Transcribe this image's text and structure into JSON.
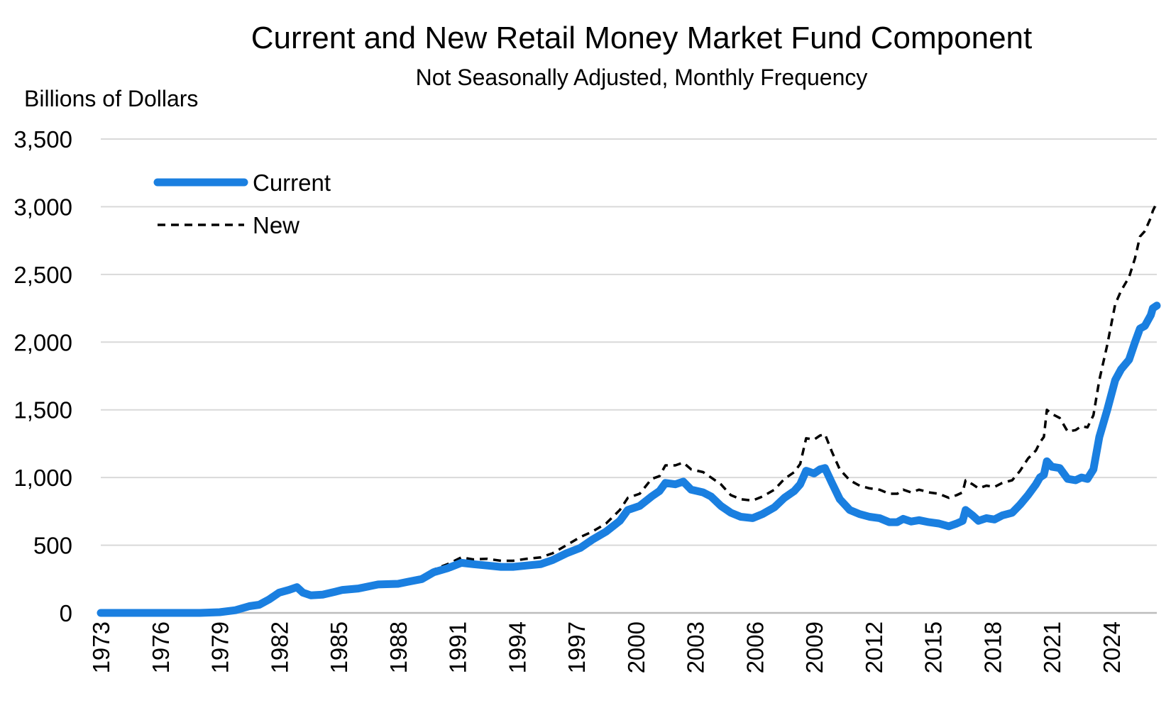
{
  "chart_data": {
    "type": "line",
    "title": "Current and New Retail Money Market Fund Component",
    "subtitle": "Not Seasonally Adjusted, Monthly Frequency",
    "ylabel": "Billions of Dollars",
    "xlabel": "",
    "ylim": [
      0,
      3500
    ],
    "xlim": [
      1973,
      2026.3
    ],
    "y_ticks": [
      "0",
      "500",
      "1,000",
      "1,500",
      "2,000",
      "2,500",
      "3,000",
      "3,500"
    ],
    "y_tick_values": [
      0,
      500,
      1000,
      1500,
      2000,
      2500,
      3000,
      3500
    ],
    "x_ticks": [
      "1973",
      "1976",
      "1979",
      "1982",
      "1985",
      "1988",
      "1991",
      "1994",
      "1997",
      "2000",
      "2003",
      "2006",
      "2009",
      "2012",
      "2015",
      "2018",
      "2021",
      "2024"
    ],
    "x_tick_values": [
      1973,
      1976,
      1979,
      1982,
      1985,
      1988,
      1991,
      1994,
      1997,
      2000,
      2003,
      2006,
      2009,
      2012,
      2015,
      2018,
      2021,
      2024
    ],
    "grid": true,
    "legend_position": "top-left",
    "series": [
      {
        "name": "Current",
        "color": "#1a7fe0",
        "style": "solid",
        "points": [
          [
            1973.0,
            0
          ],
          [
            1978.0,
            0
          ],
          [
            1979.0,
            5
          ],
          [
            1979.8,
            20
          ],
          [
            1980.5,
            50
          ],
          [
            1981.0,
            60
          ],
          [
            1981.5,
            100
          ],
          [
            1982.0,
            150
          ],
          [
            1982.5,
            170
          ],
          [
            1982.9,
            190
          ],
          [
            1983.2,
            150
          ],
          [
            1983.6,
            130
          ],
          [
            1984.2,
            135
          ],
          [
            1984.8,
            155
          ],
          [
            1985.2,
            170
          ],
          [
            1986.0,
            180
          ],
          [
            1987.0,
            210
          ],
          [
            1988.0,
            215
          ],
          [
            1988.5,
            230
          ],
          [
            1989.2,
            250
          ],
          [
            1989.8,
            300
          ],
          [
            1990.5,
            330
          ],
          [
            1991.2,
            370
          ],
          [
            1991.8,
            360
          ],
          [
            1992.5,
            350
          ],
          [
            1993.2,
            340
          ],
          [
            1993.8,
            340
          ],
          [
            1994.5,
            350
          ],
          [
            1995.2,
            360
          ],
          [
            1995.8,
            390
          ],
          [
            1996.5,
            440
          ],
          [
            1997.2,
            480
          ],
          [
            1997.8,
            540
          ],
          [
            1998.5,
            600
          ],
          [
            1999.2,
            680
          ],
          [
            1999.6,
            760
          ],
          [
            2000.2,
            790
          ],
          [
            2000.8,
            860
          ],
          [
            2001.2,
            900
          ],
          [
            2001.5,
            960
          ],
          [
            2002.0,
            950
          ],
          [
            2002.4,
            970
          ],
          [
            2002.8,
            910
          ],
          [
            2003.4,
            890
          ],
          [
            2003.8,
            860
          ],
          [
            2004.3,
            790
          ],
          [
            2004.8,
            740
          ],
          [
            2005.3,
            710
          ],
          [
            2005.9,
            700
          ],
          [
            2006.4,
            730
          ],
          [
            2007.0,
            780
          ],
          [
            2007.5,
            850
          ],
          [
            2008.0,
            900
          ],
          [
            2008.3,
            950
          ],
          [
            2008.6,
            1050
          ],
          [
            2009.0,
            1030
          ],
          [
            2009.3,
            1060
          ],
          [
            2009.55,
            1070
          ],
          [
            2009.9,
            960
          ],
          [
            2010.3,
            840
          ],
          [
            2010.8,
            760
          ],
          [
            2011.3,
            730
          ],
          [
            2011.8,
            710
          ],
          [
            2012.3,
            700
          ],
          [
            2012.8,
            670
          ],
          [
            2013.2,
            670
          ],
          [
            2013.5,
            695
          ],
          [
            2013.9,
            675
          ],
          [
            2014.3,
            685
          ],
          [
            2014.8,
            670
          ],
          [
            2015.3,
            660
          ],
          [
            2015.8,
            640
          ],
          [
            2016.2,
            660
          ],
          [
            2016.5,
            680
          ],
          [
            2016.65,
            760
          ],
          [
            2017.0,
            720
          ],
          [
            2017.3,
            680
          ],
          [
            2017.7,
            700
          ],
          [
            2018.1,
            690
          ],
          [
            2018.5,
            720
          ],
          [
            2019.0,
            740
          ],
          [
            2019.4,
            800
          ],
          [
            2019.8,
            870
          ],
          [
            2020.2,
            950
          ],
          [
            2020.4,
            1000
          ],
          [
            2020.6,
            1020
          ],
          [
            2020.75,
            1120
          ],
          [
            2021.0,
            1080
          ],
          [
            2021.4,
            1070
          ],
          [
            2021.8,
            990
          ],
          [
            2022.2,
            980
          ],
          [
            2022.5,
            1000
          ],
          [
            2022.8,
            990
          ],
          [
            2023.1,
            1060
          ],
          [
            2023.4,
            1300
          ],
          [
            2023.8,
            1500
          ],
          [
            2024.2,
            1720
          ],
          [
            2024.5,
            1800
          ],
          [
            2024.9,
            1870
          ],
          [
            2025.2,
            2000
          ],
          [
            2025.45,
            2100
          ],
          [
            2025.7,
            2120
          ],
          [
            2026.0,
            2200
          ],
          [
            2026.1,
            2250
          ],
          [
            2026.3,
            2270
          ]
        ]
      },
      {
        "name": "New",
        "color": "#000000",
        "style": "dashed",
        "points": [
          [
            1973.0,
            0
          ],
          [
            1978.0,
            0
          ],
          [
            1979.0,
            5
          ],
          [
            1979.8,
            20
          ],
          [
            1980.5,
            50
          ],
          [
            1981.0,
            60
          ],
          [
            1981.5,
            100
          ],
          [
            1982.0,
            150
          ],
          [
            1982.5,
            170
          ],
          [
            1982.9,
            175
          ],
          [
            1983.2,
            150
          ],
          [
            1983.6,
            140
          ],
          [
            1984.2,
            145
          ],
          [
            1984.8,
            165
          ],
          [
            1985.2,
            180
          ],
          [
            1986.0,
            190
          ],
          [
            1987.0,
            215
          ],
          [
            1988.0,
            225
          ],
          [
            1988.5,
            245
          ],
          [
            1989.2,
            270
          ],
          [
            1989.8,
            320
          ],
          [
            1990.5,
            360
          ],
          [
            1991.2,
            410
          ],
          [
            1991.8,
            395
          ],
          [
            1992.5,
            400
          ],
          [
            1993.2,
            385
          ],
          [
            1993.8,
            385
          ],
          [
            1994.5,
            400
          ],
          [
            1995.2,
            410
          ],
          [
            1995.8,
            440
          ],
          [
            1996.5,
            500
          ],
          [
            1997.2,
            560
          ],
          [
            1997.8,
            600
          ],
          [
            1998.5,
            660
          ],
          [
            1999.2,
            760
          ],
          [
            1999.6,
            850
          ],
          [
            2000.2,
            880
          ],
          [
            2000.8,
            990
          ],
          [
            2001.2,
            1010
          ],
          [
            2001.5,
            1090
          ],
          [
            2002.0,
            1090
          ],
          [
            2002.4,
            1110
          ],
          [
            2002.8,
            1060
          ],
          [
            2003.4,
            1040
          ],
          [
            2003.8,
            1000
          ],
          [
            2004.3,
            950
          ],
          [
            2004.8,
            870
          ],
          [
            2005.3,
            840
          ],
          [
            2005.9,
            830
          ],
          [
            2006.4,
            860
          ],
          [
            2007.0,
            910
          ],
          [
            2007.5,
            990
          ],
          [
            2008.0,
            1040
          ],
          [
            2008.3,
            1100
          ],
          [
            2008.6,
            1290
          ],
          [
            2009.0,
            1280
          ],
          [
            2009.3,
            1310
          ],
          [
            2009.55,
            1320
          ],
          [
            2009.9,
            1190
          ],
          [
            2010.3,
            1060
          ],
          [
            2010.8,
            980
          ],
          [
            2011.3,
            940
          ],
          [
            2011.8,
            920
          ],
          [
            2012.3,
            910
          ],
          [
            2012.8,
            880
          ],
          [
            2013.2,
            880
          ],
          [
            2013.5,
            910
          ],
          [
            2013.9,
            890
          ],
          [
            2014.3,
            910
          ],
          [
            2014.8,
            890
          ],
          [
            2015.3,
            880
          ],
          [
            2015.8,
            850
          ],
          [
            2016.2,
            870
          ],
          [
            2016.5,
            890
          ],
          [
            2016.65,
            980
          ],
          [
            2017.0,
            950
          ],
          [
            2017.3,
            920
          ],
          [
            2017.7,
            940
          ],
          [
            2018.1,
            930
          ],
          [
            2018.5,
            960
          ],
          [
            2019.0,
            980
          ],
          [
            2019.4,
            1050
          ],
          [
            2019.8,
            1140
          ],
          [
            2020.2,
            1200
          ],
          [
            2020.4,
            1260
          ],
          [
            2020.6,
            1300
          ],
          [
            2020.75,
            1500
          ],
          [
            2021.0,
            1470
          ],
          [
            2021.4,
            1440
          ],
          [
            2021.8,
            1340
          ],
          [
            2022.2,
            1350
          ],
          [
            2022.5,
            1380
          ],
          [
            2022.8,
            1370
          ],
          [
            2023.1,
            1460
          ],
          [
            2023.4,
            1720
          ],
          [
            2023.8,
            1980
          ],
          [
            2024.2,
            2280
          ],
          [
            2024.5,
            2380
          ],
          [
            2024.9,
            2480
          ],
          [
            2025.2,
            2620
          ],
          [
            2025.45,
            2780
          ],
          [
            2025.7,
            2820
          ],
          [
            2026.0,
            2920
          ],
          [
            2026.1,
            2970
          ],
          [
            2026.3,
            3030
          ]
        ]
      }
    ]
  }
}
